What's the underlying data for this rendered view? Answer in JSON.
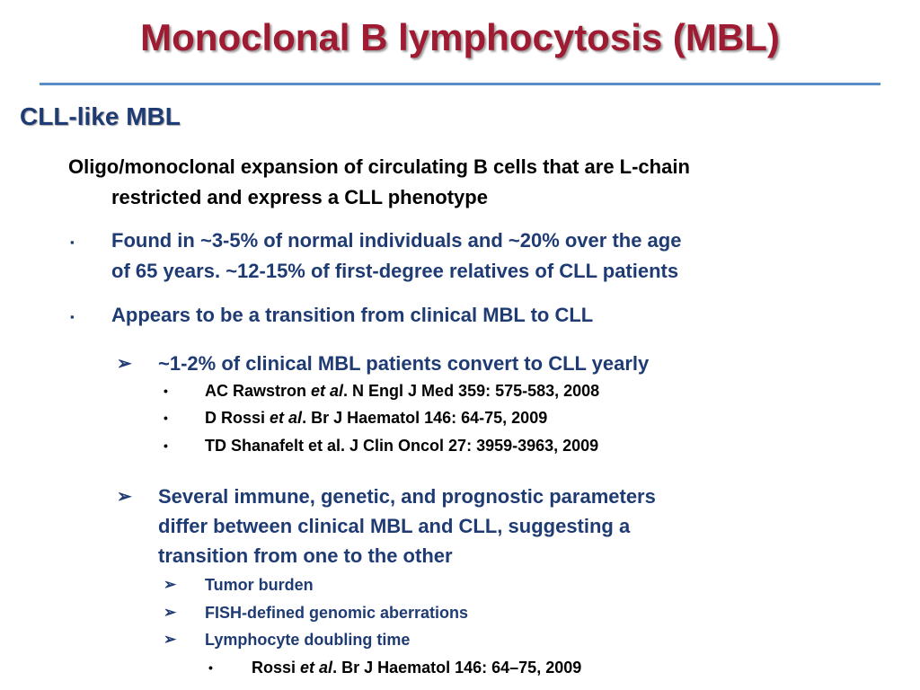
{
  "title": "Monoclonal B lymphocytosis (MBL)",
  "subheading": "CLL-like MBL",
  "intro": {
    "line1": "Oligo/monoclonal expansion of circulating B cells that are L-chain",
    "line2": "restricted and express a CLL phenotype"
  },
  "bullet1": {
    "line1": "Found in ~3-5% of normal individuals and ~20% over the age",
    "line2": "of 65 years. ~12-15% of first-degree relatives of CLL patients"
  },
  "bullet2": {
    "text": "Appears to be a transition from clinical MBL to CLL"
  },
  "sub1": {
    "text": "~1-2% of clinical MBL patients convert to CLL yearly",
    "refs": [
      {
        "author": "AC Rawstron ",
        "etal": "et al",
        "rest": ". N Engl J Med 359: 575-583, 2008"
      },
      {
        "author": "D Rossi ",
        "etal": "et al",
        "rest": ". Br J Haematol 146: 64-75, 2009"
      },
      {
        "author": "TD Shanafelt et al. J Clin Oncol 27: 3959-3963, 2009",
        "etal": "",
        "rest": ""
      }
    ]
  },
  "sub2": {
    "line1": "Several immune, genetic, and prognostic parameters",
    "line2": "differ between clinical MBL and CLL, suggesting a",
    "line3": "transition from one to the other",
    "items": [
      "Tumor burden",
      "FISH-defined genomic aberrations",
      "Lymphocyte doubling time"
    ],
    "ref": {
      "author": "Rossi ",
      "etal": "et al",
      "rest": ". Br J Haematol 146: 64–75, 2009"
    }
  },
  "markers": {
    "square": "▪",
    "arrow": "➢",
    "dot": "•"
  },
  "colors": {
    "title": "#9e1b32",
    "accent_blue": "#1f3b73",
    "rule": "#5b8ec8"
  }
}
